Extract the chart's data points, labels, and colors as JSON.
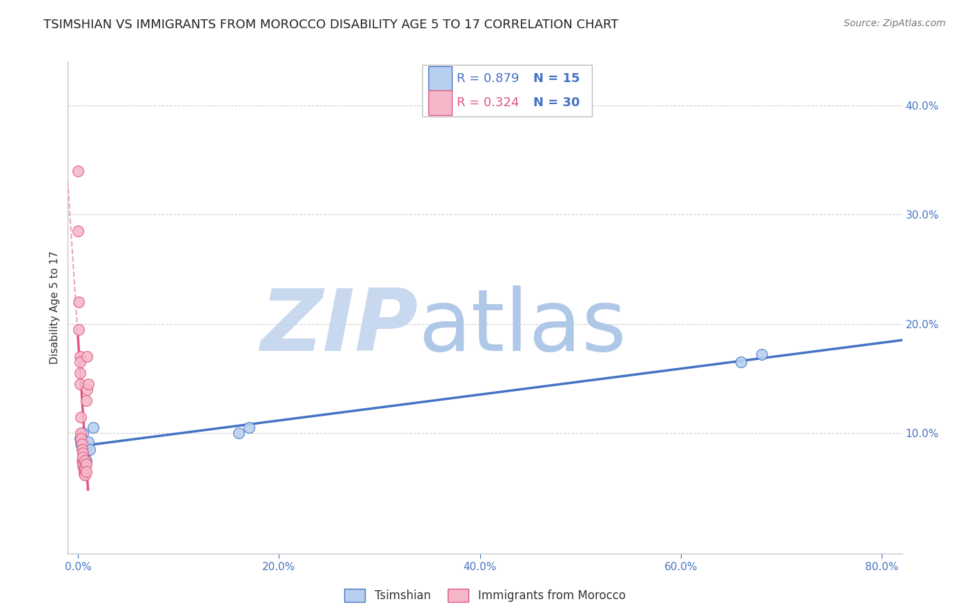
{
  "title": "TSIMSHIAN VS IMMIGRANTS FROM MOROCCO DISABILITY AGE 5 TO 17 CORRELATION CHART",
  "source": "Source: ZipAtlas.com",
  "ylabel": "Disability Age 5 to 17",
  "x_tick_values": [
    0.0,
    0.2,
    0.4,
    0.6,
    0.8
  ],
  "y_tick_values": [
    0.1,
    0.2,
    0.3,
    0.4
  ],
  "legend_entry1": {
    "color": "#b8d0f0",
    "R": "R = 0.879",
    "N": "N = 15",
    "label": "Tsimshian"
  },
  "legend_entry2": {
    "color": "#f5b8c8",
    "R": "R = 0.324",
    "N": "N = 30",
    "label": "Immigrants from Morocco"
  },
  "tsimshian_points": [
    [
      0.002,
      0.095
    ],
    [
      0.003,
      0.09
    ],
    [
      0.004,
      0.085
    ],
    [
      0.005,
      0.1
    ],
    [
      0.006,
      0.08
    ],
    [
      0.007,
      0.09
    ],
    [
      0.008,
      0.075
    ],
    [
      0.009,
      0.088
    ],
    [
      0.01,
      0.092
    ],
    [
      0.012,
      0.085
    ],
    [
      0.015,
      0.105
    ],
    [
      0.16,
      0.1
    ],
    [
      0.17,
      0.105
    ],
    [
      0.66,
      0.165
    ],
    [
      0.68,
      0.172
    ]
  ],
  "morocco_points": [
    [
      0.0,
      0.34
    ],
    [
      0.0,
      0.285
    ],
    [
      0.001,
      0.22
    ],
    [
      0.001,
      0.195
    ],
    [
      0.002,
      0.17
    ],
    [
      0.002,
      0.165
    ],
    [
      0.002,
      0.155
    ],
    [
      0.002,
      0.145
    ],
    [
      0.003,
      0.115
    ],
    [
      0.003,
      0.1
    ],
    [
      0.003,
      0.095
    ],
    [
      0.004,
      0.09
    ],
    [
      0.004,
      0.085
    ],
    [
      0.004,
      0.075
    ],
    [
      0.005,
      0.082
    ],
    [
      0.005,
      0.078
    ],
    [
      0.005,
      0.072
    ],
    [
      0.005,
      0.07
    ],
    [
      0.006,
      0.068
    ],
    [
      0.006,
      0.065
    ],
    [
      0.006,
      0.063
    ],
    [
      0.007,
      0.062
    ],
    [
      0.007,
      0.075
    ],
    [
      0.007,
      0.068
    ],
    [
      0.008,
      0.072
    ],
    [
      0.008,
      0.065
    ],
    [
      0.008,
      0.13
    ],
    [
      0.009,
      0.17
    ],
    [
      0.009,
      0.14
    ],
    [
      0.01,
      0.145
    ]
  ],
  "tsimshian_line_color": "#4472c4",
  "morocco_line_color": "#e05580",
  "morocco_dashed_color": "#f0a0b8",
  "background_color": "#ffffff",
  "grid_color": "#cccccc",
  "watermark_zip_color": "#c8d8ee",
  "watermark_atlas_color": "#b0c8e8",
  "xlim": [
    -0.01,
    0.82
  ],
  "ylim": [
    -0.01,
    0.44
  ],
  "title_fontsize": 13,
  "source_fontsize": 10,
  "axis_label_fontsize": 11,
  "tick_fontsize": 11,
  "legend_fontsize": 12
}
